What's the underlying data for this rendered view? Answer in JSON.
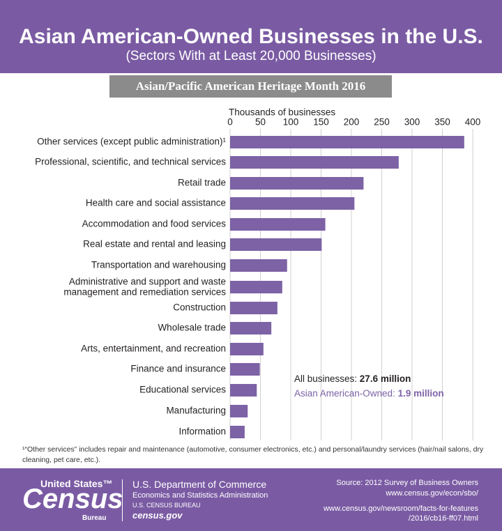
{
  "header": {
    "title": "Asian American-Owned Businesses in the U.S.",
    "subtitle": "(Sectors With at Least 20,000 Businesses)",
    "banner": "Asian/Pacific American Heritage Month 2016"
  },
  "chart_data": {
    "type": "bar",
    "orientation": "horizontal",
    "x_label": "Thousands of businesses",
    "categories": [
      "Other services (except public administration)¹",
      "Professional, scientific, and technical services",
      "Retail trade",
      "Health care and social assistance",
      "Accommodation and food services",
      "Real estate and rental and leasing",
      "Transportation and warehousing",
      "Administrative and support and waste\nmanagement and remediation services",
      "Construction",
      "Wholesale trade",
      "Arts, entertainment, and recreation",
      "Finance and insurance",
      "Educational services",
      "Manufacturing",
      "Information"
    ],
    "values": [
      386,
      278,
      220,
      205,
      157,
      151,
      94,
      86,
      78,
      68,
      55,
      49,
      44,
      29,
      24
    ],
    "color": "#7d62a6",
    "xlim": [
      0,
      400
    ],
    "xticks": [
      0,
      50,
      100,
      150,
      200,
      250,
      300,
      350,
      400
    ],
    "grid": true,
    "annotations": [
      {
        "label": "All businesses: ",
        "value": "27.6 million",
        "color": "#231f20"
      },
      {
        "label": "Asian American-Owned: ",
        "value": "1.9 million",
        "color": "#7d62a6"
      }
    ]
  },
  "footnote": "¹“Other services” includes repair and maintenance (automotive, consumer electronics, etc.) and personal/laundry services (hair/nail salons, dry cleaning, pet care, etc.).",
  "footer": {
    "logo": [
      "United States™",
      "Census",
      "Bureau"
    ],
    "agency": [
      "U.S. Department of Commerce",
      "Economics and Statistics Administration",
      "U.S. CENSUS BUREAU",
      "census.gov"
    ],
    "source": [
      "Source: 2012 Survey of Business Owners",
      "www.census.gov/econ/sbo/",
      "www.census.gov/newsroom/facts-for-features",
      "/2016/cb16-ff07.html"
    ]
  }
}
